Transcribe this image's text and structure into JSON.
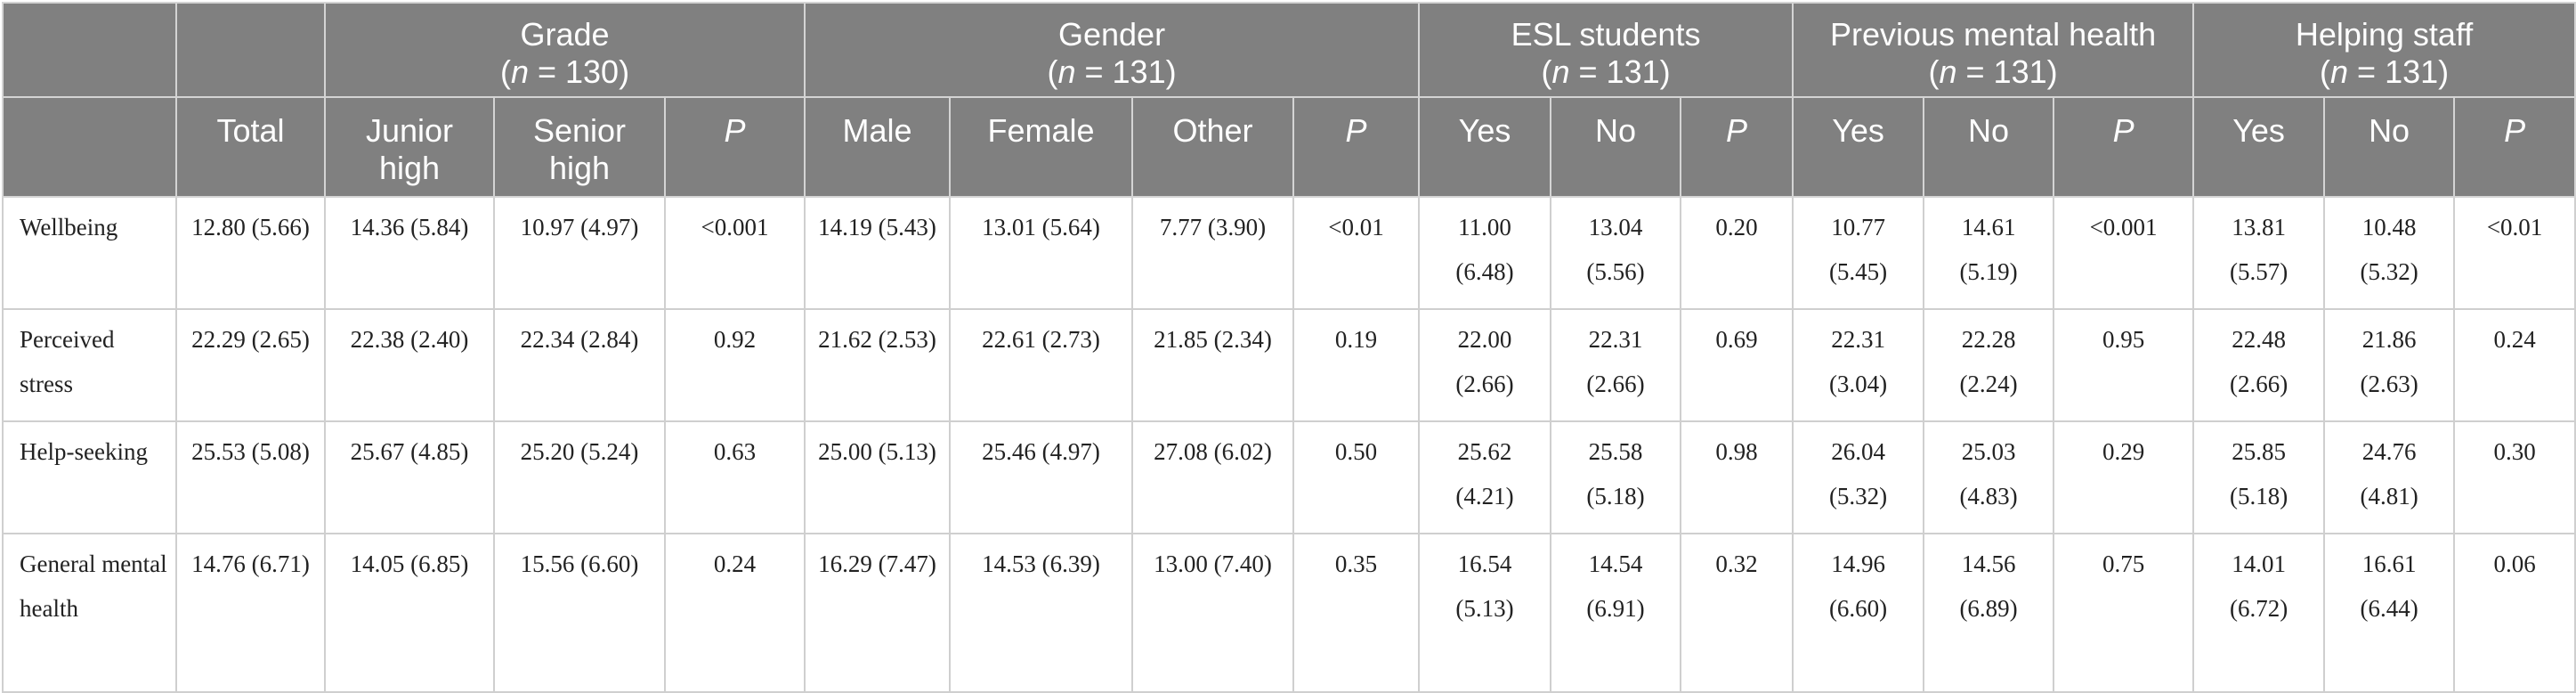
{
  "groups": [
    {
      "name": "Grade",
      "n_prefix": "(",
      "n_var": "n",
      "n_suffix": " = 130)"
    },
    {
      "name": "Gender",
      "n_prefix": "(",
      "n_var": "n",
      "n_suffix": " = 131)"
    },
    {
      "name": "ESL students",
      "n_prefix": "(",
      "n_var": "n",
      "n_suffix": " = 131)"
    },
    {
      "name": "Previous mental health",
      "n_prefix": "(",
      "n_var": "n",
      "n_suffix": " = 131)"
    },
    {
      "name": "Helping staff",
      "n_prefix": "(",
      "n_var": "n",
      "n_suffix": " = 131)"
    }
  ],
  "columns": [
    "Total",
    "Junior high",
    "Senior high",
    "P",
    "Male",
    "Female",
    "Other",
    "P",
    "Yes",
    "No",
    "P",
    "Yes",
    "No",
    "P",
    "Yes",
    "No",
    "P"
  ],
  "rows": [
    {
      "label": "Wellbeing",
      "cells": [
        "12.80 (5.66)",
        "14.36 (5.84)",
        "10.97 (4.97)",
        "<0.001",
        "14.19 (5.43)",
        "13.01 (5.64)",
        "7.77 (3.90)",
        "<0.01",
        "11.00 (6.48)",
        "13.04 (5.56)",
        "0.20",
        "10.77 (5.45)",
        "14.61 (5.19)",
        "<0.001",
        "13.81 (5.57)",
        "10.48 (5.32)",
        "<0.01"
      ]
    },
    {
      "label": "Perceived stress",
      "cells": [
        "22.29 (2.65)",
        "22.38 (2.40)",
        "22.34 (2.84)",
        "0.92",
        "21.62 (2.53)",
        "22.61 (2.73)",
        "21.85 (2.34)",
        "0.19",
        "22.00 (2.66)",
        "22.31 (2.66)",
        "0.69",
        "22.31 (3.04)",
        "22.28 (2.24)",
        "0.95",
        "22.48 (2.66)",
        "21.86 (2.63)",
        "0.24"
      ]
    },
    {
      "label": "Help-seeking",
      "cells": [
        "25.53 (5.08)",
        "25.67 (4.85)",
        "25.20 (5.24)",
        "0.63",
        "25.00 (5.13)",
        "25.46 (4.97)",
        "27.08 (6.02)",
        "0.50",
        "25.62 (4.21)",
        "25.58 (5.18)",
        "0.98",
        "26.04 (5.32)",
        "25.03 (4.83)",
        "0.29",
        "25.85 (5.18)",
        "24.76 (4.81)",
        "0.30"
      ]
    },
    {
      "label": "General mental health",
      "cells": [
        "14.76 (6.71)",
        "14.05 (6.85)",
        "15.56 (6.60)",
        "0.24",
        "16.29 (7.47)",
        "14.53 (6.39)",
        "13.00 (7.40)",
        "0.35",
        "16.54 (5.13)",
        "14.54 (6.91)",
        "0.32",
        "14.96 (6.60)",
        "14.56 (6.89)",
        "0.75",
        "14.01 (6.72)",
        "16.61 (6.44)",
        "0.06"
      ]
    }
  ]
}
